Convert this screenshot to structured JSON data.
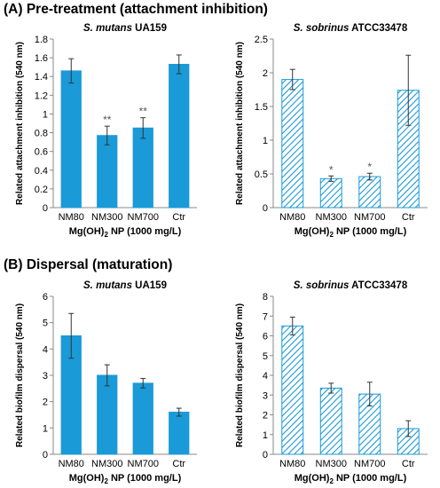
{
  "sections": [
    {
      "label": "(A)",
      "title": "Pre-treatment (attachment inhibition)"
    },
    {
      "label": "(B)",
      "title": "Dispersal (maturation)"
    }
  ],
  "colors": {
    "bar": "#1a9ad7",
    "bar_outline": "#1a9ad7",
    "hatch": "#1a9ad7",
    "axis": "#888888",
    "error": "#333333"
  },
  "chart_data": [
    {
      "type": "bar",
      "title_species": "S. mutans",
      "title_strain": "UA159",
      "fill": "solid",
      "categories": [
        "NM80",
        "NM300",
        "NM700",
        "Ctr"
      ],
      "values": [
        1.46,
        0.77,
        0.85,
        1.53
      ],
      "errors": [
        0.13,
        0.1,
        0.11,
        0.1
      ],
      "annotations": [
        "",
        "**",
        "**",
        ""
      ],
      "ylabel": "Related attachment inhibition (540 nm)",
      "xlabel_main": "Mg(OH)",
      "xlabel_sub": "2",
      "xlabel_rest": " NP (1000 mg/L)",
      "ylim": [
        0,
        1.8
      ],
      "yticks": [
        "0",
        "0.2",
        "0.4",
        "0.6",
        "0.8",
        "1",
        "1.2",
        "1.4",
        "1.6",
        "1.8"
      ],
      "grid": false
    },
    {
      "type": "bar",
      "title_species": "S. sobrinus",
      "title_strain": "ATCC33478",
      "fill": "hatched",
      "categories": [
        "NM80",
        "NM300",
        "NM700",
        "Ctr"
      ],
      "values": [
        1.9,
        0.43,
        0.46,
        1.74
      ],
      "errors": [
        0.15,
        0.04,
        0.05,
        0.52
      ],
      "annotations": [
        "",
        "*",
        "*",
        ""
      ],
      "ylabel": "Related attachment inhibition (540 nm)",
      "xlabel_main": "Mg(OH)",
      "xlabel_sub": "2",
      "xlabel_rest": " NP (1000 mg/L)",
      "ylim": [
        0,
        2.5
      ],
      "yticks": [
        "0",
        "0.5",
        "1",
        "1.5",
        "2",
        "2.5"
      ],
      "grid": false
    },
    {
      "type": "bar",
      "title_species": "S. mutans",
      "title_strain": "UA159",
      "fill": "solid",
      "categories": [
        "NM80",
        "NM300",
        "NM700",
        "Ctr"
      ],
      "values": [
        4.5,
        3.0,
        2.7,
        1.6
      ],
      "errors": [
        0.85,
        0.4,
        0.18,
        0.15
      ],
      "annotations": [
        "",
        "",
        "",
        ""
      ],
      "ylabel": "Related biofilm dispersal (540 nm)",
      "xlabel_main": "Mg(OH)",
      "xlabel_sub": "2",
      "xlabel_rest": " NP (1000 mg/L)",
      "ylim": [
        0,
        6
      ],
      "yticks": [
        "0",
        "1",
        "2",
        "3",
        "4",
        "5",
        "6"
      ],
      "grid": false
    },
    {
      "type": "bar",
      "title_species": "S. sobrinus",
      "title_strain": "ATCC33478",
      "fill": "hatched",
      "categories": [
        "NM80",
        "NM300",
        "NM700",
        "Ctr"
      ],
      "values": [
        6.5,
        3.35,
        3.05,
        1.3
      ],
      "errors": [
        0.45,
        0.25,
        0.6,
        0.4
      ],
      "annotations": [
        "",
        "",
        "",
        ""
      ],
      "ylabel": "Related biofilm dispersal (540 nm)",
      "xlabel_main": "Mg(OH)",
      "xlabel_sub": "2",
      "xlabel_rest": " NP (1000 mg/L)",
      "ylim": [
        0,
        8
      ],
      "yticks": [
        "0",
        "1",
        "2",
        "3",
        "4",
        "5",
        "6",
        "7",
        "8"
      ],
      "grid": false
    }
  ]
}
